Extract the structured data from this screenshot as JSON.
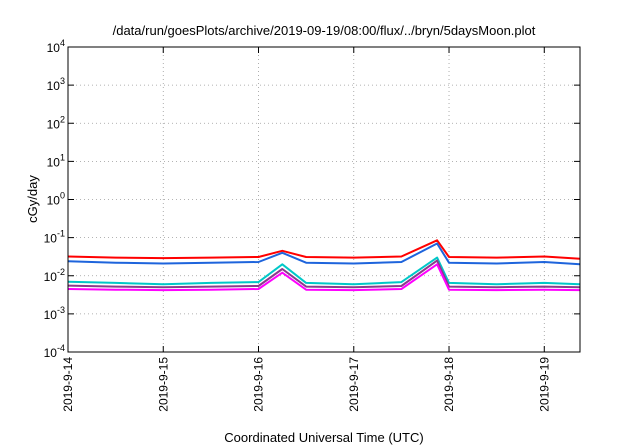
{
  "chart_data": {
    "type": "line",
    "title": "/data/run/goesPlots/archive/2019-09-19/08:00/flux/../bryn/5daysMoon.plot",
    "xlabel": "Coordinated Universal Time (UTC)",
    "ylabel": "cGy/day",
    "y_scale": "log",
    "ylim": [
      0.0001,
      10000
    ],
    "y_ticks": [
      {
        "base": "10",
        "exp": "4"
      },
      {
        "base": "10",
        "exp": "3"
      },
      {
        "base": "10",
        "exp": "2"
      },
      {
        "base": "10",
        "exp": "1"
      },
      {
        "base": "10",
        "exp": "0"
      },
      {
        "base": "10",
        "exp": "-1"
      },
      {
        "base": "10",
        "exp": "-2"
      },
      {
        "base": "10",
        "exp": "-3"
      },
      {
        "base": "10",
        "exp": "-4"
      }
    ],
    "x_range": [
      "2019-09-14",
      "2019-09-19 09:00"
    ],
    "x_ticks": [
      "2019-9-14",
      "2019-9-15",
      "2019-9-16",
      "2019-9-17",
      "2019-9-18",
      "2019-9-19"
    ],
    "grid": true,
    "legend": "none",
    "series": [
      {
        "color": "#ff0000",
        "x": [
          "2019-09-14",
          "2019-09-14 12:00",
          "2019-09-15",
          "2019-09-15 12:00",
          "2019-09-16",
          "2019-09-16 06:00",
          "2019-09-16 12:00",
          "2019-09-17",
          "2019-09-17 12:00",
          "2019-09-17 21:00",
          "2019-09-18",
          "2019-09-18 12:00",
          "2019-09-19",
          "2019-09-19 09:00"
        ],
        "values": [
          0.032,
          0.03,
          0.029,
          0.03,
          0.031,
          0.045,
          0.031,
          0.03,
          0.032,
          0.085,
          0.031,
          0.03,
          0.032,
          0.028
        ]
      },
      {
        "color": "#1e64dc",
        "x": [
          "2019-09-14",
          "2019-09-14 12:00",
          "2019-09-15",
          "2019-09-15 12:00",
          "2019-09-16",
          "2019-09-16 06:00",
          "2019-09-16 12:00",
          "2019-09-17",
          "2019-09-17 12:00",
          "2019-09-17 21:00",
          "2019-09-18",
          "2019-09-18 12:00",
          "2019-09-19",
          "2019-09-19 09:00"
        ],
        "values": [
          0.024,
          0.022,
          0.021,
          0.022,
          0.023,
          0.04,
          0.022,
          0.021,
          0.023,
          0.07,
          0.022,
          0.021,
          0.023,
          0.02
        ]
      },
      {
        "color": "#00c8c8",
        "x": [
          "2019-09-14",
          "2019-09-14 12:00",
          "2019-09-15",
          "2019-09-15 12:00",
          "2019-09-16",
          "2019-09-16 06:00",
          "2019-09-16 12:00",
          "2019-09-17",
          "2019-09-17 12:00",
          "2019-09-17 21:00",
          "2019-09-18",
          "2019-09-18 12:00",
          "2019-09-19",
          "2019-09-19 09:00"
        ],
        "values": [
          0.007,
          0.0065,
          0.006,
          0.0065,
          0.0068,
          0.02,
          0.0065,
          0.006,
          0.0068,
          0.03,
          0.0065,
          0.006,
          0.0065,
          0.006
        ]
      },
      {
        "color": "#8b3a8b",
        "x": [
          "2019-09-14",
          "2019-09-14 12:00",
          "2019-09-15",
          "2019-09-15 12:00",
          "2019-09-16",
          "2019-09-16 06:00",
          "2019-09-16 12:00",
          "2019-09-17",
          "2019-09-17 12:00",
          "2019-09-17 21:00",
          "2019-09-18",
          "2019-09-18 12:00",
          "2019-09-19",
          "2019-09-19 09:00"
        ],
        "values": [
          0.0055,
          0.0052,
          0.005,
          0.0052,
          0.0054,
          0.015,
          0.0052,
          0.005,
          0.0054,
          0.025,
          0.0052,
          0.005,
          0.0052,
          0.005
        ]
      },
      {
        "color": "#ff00ff",
        "x": [
          "2019-09-14",
          "2019-09-14 12:00",
          "2019-09-15",
          "2019-09-15 12:00",
          "2019-09-16",
          "2019-09-16 06:00",
          "2019-09-16 12:00",
          "2019-09-17",
          "2019-09-17 12:00",
          "2019-09-17 21:00",
          "2019-09-18",
          "2019-09-18 12:00",
          "2019-09-19",
          "2019-09-19 09:00"
        ],
        "values": [
          0.0045,
          0.0043,
          0.0042,
          0.0043,
          0.0045,
          0.012,
          0.0043,
          0.0042,
          0.0045,
          0.02,
          0.0043,
          0.0042,
          0.0043,
          0.0042
        ]
      }
    ]
  }
}
